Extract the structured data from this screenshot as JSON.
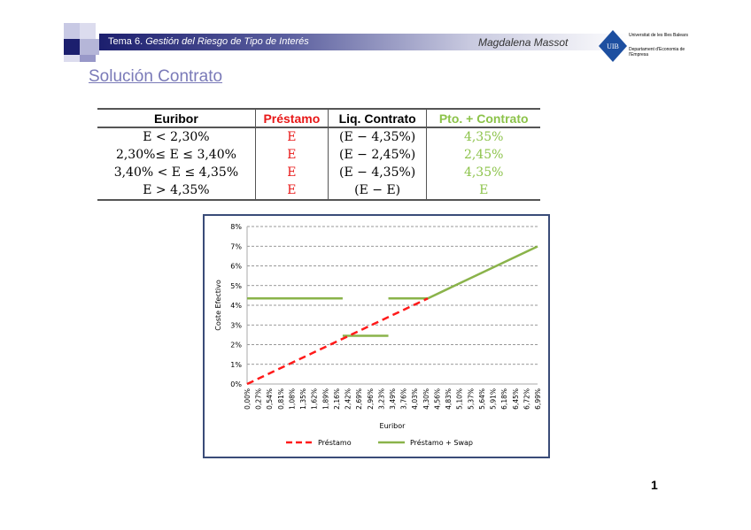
{
  "header": {
    "topic_number": "Tema 6.",
    "topic_title": "Gestión del Riesgo de Tipo de Interés",
    "author": "Magdalena Massot",
    "logo_text": [
      "Universitat de les Illes Balears",
      "Departament d'Economia de l'Empresa"
    ]
  },
  "slide_title": "Solución Contrato",
  "table": {
    "headers": [
      "Euribor",
      "Préstamo",
      "Liq. Contrato",
      "Pto. + Contrato"
    ],
    "rows": [
      [
        "E  < 2,30%",
        "E",
        "(E − 4,35%)",
        "4,35%"
      ],
      [
        "2,30%≤ E ≤ 3,40%",
        "E",
        "(E − 2,45%)",
        "2,45%"
      ],
      [
        "3,40% <  E ≤ 4,35%",
        "E",
        "(E − 4,35%)",
        "4,35%"
      ],
      [
        "E >  4,35%",
        "E",
        "(E − E)",
        "E"
      ]
    ]
  },
  "chart_data": {
    "type": "line",
    "xlabel": "Euribor",
    "ylabel": "Coste Efectivo",
    "x_ticks": [
      "0,00%",
      "0,27%",
      "0,54%",
      "0,81%",
      "1,08%",
      "1,35%",
      "1,62%",
      "1,89%",
      "2,16%",
      "2,42%",
      "2,69%",
      "2,96%",
      "3,23%",
      "3,49%",
      "3,76%",
      "4,03%",
      "4,30%",
      "4,56%",
      "4,83%",
      "5,10%",
      "5,37%",
      "5,64%",
      "5,91%",
      "6,18%",
      "6,45%",
      "6,72%",
      "6,99%"
    ],
    "y_ticks": [
      "0%",
      "1%",
      "2%",
      "3%",
      "4%",
      "5%",
      "6%",
      "7%",
      "8%"
    ],
    "xlim": [
      0,
      6.99
    ],
    "ylim": [
      0,
      8
    ],
    "grid": true,
    "legend": "bottom",
    "series": [
      {
        "name": "Préstamo",
        "color": "#ff1a1a",
        "style": "dashed",
        "segments": [
          [
            [
              0,
              0
            ],
            [
              4.35,
              4.35
            ]
          ]
        ]
      },
      {
        "name": "Préstamo + Swap",
        "color": "#8ab34a",
        "style": "solid",
        "segments": [
          [
            [
              0,
              4.35
            ],
            [
              2.3,
              4.35
            ]
          ],
          [
            [
              2.3,
              2.45
            ],
            [
              3.4,
              2.45
            ]
          ],
          [
            [
              3.4,
              4.35
            ],
            [
              4.35,
              4.35
            ],
            [
              6.99,
              6.99
            ]
          ]
        ]
      }
    ]
  },
  "page_number": "1"
}
